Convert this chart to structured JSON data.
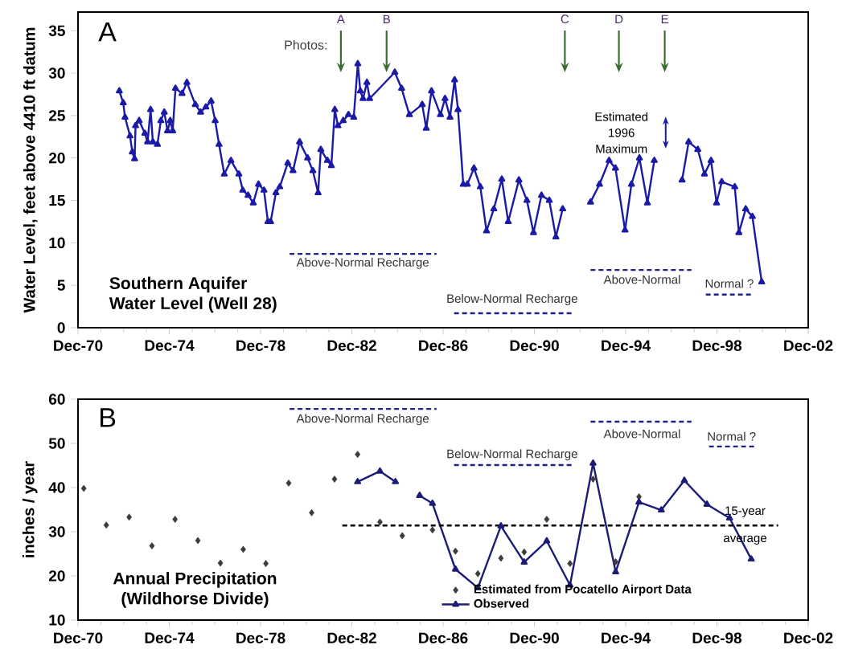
{
  "chart_data": [
    {
      "type": "line",
      "title": "Southern Aquifer",
      "subtitle": "Water Level (Well 28)",
      "ylabel": "Water Level, feet above 4410 ft datum",
      "xlim": [
        "1970-12",
        "2002-12"
      ],
      "ylim": [
        0,
        37.2
      ],
      "yticks": [
        0,
        5,
        10,
        15,
        20,
        25,
        30,
        35
      ],
      "xticks": [
        {
          "value": "1970-12",
          "label": "Dec-70"
        },
        {
          "value": "1974-12",
          "label": "Dec-74"
        },
        {
          "value": "1978-12",
          "label": "Dec-78"
        },
        {
          "value": "1982-12",
          "label": "Dec-82"
        },
        {
          "value": "1986-12",
          "label": "Dec-86"
        },
        {
          "value": "1990-12",
          "label": "Dec-90"
        },
        {
          "value": "1994-12",
          "label": "Dec-94"
        },
        {
          "value": "1998-12",
          "label": "Dec-98"
        },
        {
          "value": "2002-12",
          "label": "Dec-02"
        }
      ],
      "series": [
        {
          "color": "#1a1aa6",
          "marker": "triangle",
          "x": [
            "1972-09-23",
            "1972-11-25",
            "1972-12-23",
            "1973-03-12",
            "1973-04-18",
            "1973-05-24",
            "1973-06-09",
            "1973-08-06",
            "1973-11-06",
            "1973-12-19",
            "1974-02-06",
            "1974-03-12",
            "1974-05-24",
            "1974-07-18",
            "1974-09-12",
            "1974-11-03",
            "1974-12-16",
            "1975-01-25",
            "1975-03-09",
            "1975-06-23",
            "1975-09-09",
            "1976-01-22",
            "1976-04-15",
            "1976-07-08",
            "1976-10-01",
            "1976-12-05",
            "1977-02-06",
            "1977-04-29",
            "1977-08-14",
            "1977-12-19",
            "1978-02-21",
            "1978-05-14",
            "1978-08-06",
            "1978-10-29",
            "1979-01-25",
            "1979-03-27",
            "1979-05-10",
            "1979-08-03",
            "1979-10-04",
            "1980-02-10",
            "1980-05-03",
            "1980-08-17",
            "1980-12-23",
            "1981-03-16",
            "1981-06-09",
            "1981-07-22",
            "1981-11-06",
            "1982-01-08",
            "1982-03-02",
            "1982-04-22",
            "1982-07-15",
            "1982-10-08",
            "1983-01-01",
            "1983-03-05",
            "1983-04-15",
            "1983-05-28",
            "1983-07-29",
            "1983-09-12",
            "1984-10-19",
            "1985-02-06",
            "1985-06-09",
            "1986-01-01",
            "1986-03-05",
            "1986-05-28",
            "1986-10-19",
            "1987-01-01",
            "1987-03-20",
            "1987-06-02",
            "1987-07-26",
            "1987-10-19",
            "1987-12-23",
            "1988-04-08",
            "1988-07-18",
            "1988-10-26",
            "1989-02-21",
            "1989-06-27",
            "1989-10-08",
            "1990-03-27",
            "1990-08-03",
            "1990-11-17",
            "1991-03-23",
            "1991-07-26",
            "1991-11-10",
            "1992-02-28",
            "1992-10-19",
            "1993-05-17",
            "1993-10-08",
            "1994-03-09",
            "1994-06-20",
            "1994-11-21",
            "1995-03-02",
            "1995-07-08",
            "1995-11-14",
            "1996-03-02",
            "1996-10-19",
            "1997-05-21",
            "1997-09-05",
            "1998-01-29",
            "1998-05-14",
            "1998-08-28",
            "1998-11-25",
            "1999-02-17",
            "1999-09-12",
            "1999-11-17",
            "2000-03-05",
            "2000-06-20",
            "2000-11-17"
          ],
          "values": [
            27.9,
            26.5,
            24.8,
            22.6,
            20.7,
            19.9,
            23.8,
            24.4,
            22.9,
            21.9,
            25.7,
            21.9,
            21.6,
            24.4,
            25.4,
            23.2,
            24.4,
            23.2,
            28.2,
            27.6,
            28.9,
            26.3,
            25.4,
            26.0,
            26.7,
            24.4,
            21.6,
            18.1,
            19.7,
            18.1,
            16.2,
            15.6,
            14.7,
            16.9,
            16.2,
            12.5,
            12.5,
            15.9,
            16.6,
            19.4,
            18.5,
            21.9,
            20.0,
            18.5,
            15.9,
            21.0,
            19.7,
            19.1,
            25.7,
            23.8,
            24.4,
            25.1,
            24.8,
            31.1,
            27.9,
            27.0,
            28.9,
            27.0,
            30.1,
            28.2,
            25.1,
            26.3,
            23.5,
            27.9,
            25.1,
            27.0,
            24.8,
            29.2,
            25.7,
            16.9,
            16.9,
            18.8,
            16.6,
            11.4,
            14.0,
            17.5,
            12.5,
            17.4,
            15.0,
            11.2,
            15.6,
            15.0,
            10.7,
            14.0,
            null,
            14.8,
            16.9,
            19.7,
            18.8,
            11.5,
            16.9,
            20.0,
            14.7,
            19.7,
            null,
            17.4,
            21.9,
            21.0,
            18.1,
            19.7,
            14.7,
            17.2,
            16.6,
            11.2,
            14.0,
            13.1,
            5.4
          ]
        },
        {
          "color": "#20208c",
          "marker": "none",
          "line_style": "dashed",
          "x": [
            "1980-03-09",
            "1986-08-17"
          ],
          "values": [
            8.7,
            8.7
          ]
        },
        {
          "color": "#20208c",
          "marker": "none",
          "line_style": "dashed",
          "x": [
            "1987-05-24",
            "1992-08-14"
          ],
          "values": [
            1.7,
            1.7
          ]
        },
        {
          "color": "#20208c",
          "marker": "none",
          "line_style": "dashed",
          "x": [
            "1993-05-17",
            "1997-10-19"
          ],
          "values": [
            6.8,
            6.8
          ]
        },
        {
          "color": "#20208c",
          "marker": "none",
          "line_style": "dashed",
          "x": [
            "1998-06-05",
            "2000-06-16"
          ],
          "values": [
            3.9,
            3.9
          ]
        }
      ],
      "annotations": [
        "A",
        "Photos:",
        "A",
        "B",
        "C",
        "D",
        "E",
        "Estimated 1996 Maximum",
        "Above-Normal Recharge",
        "Below-Normal Recharge",
        "Above-Normal",
        "Normal ?"
      ]
    },
    {
      "type": "line",
      "title": "Annual Precipitation",
      "subtitle": "(Wildhorse Divide)",
      "ylabel": "inches / year",
      "legend": "bottom",
      "xlim": [
        "1970-12",
        "2002-12"
      ],
      "ylim": [
        10,
        60
      ],
      "yticks": [
        10,
        20,
        30,
        40,
        50,
        60
      ],
      "xticks": [
        {
          "value": "1970-12",
          "label": "Dec-70"
        },
        {
          "value": "1974-12",
          "label": "Dec-74"
        },
        {
          "value": "1978-12",
          "label": "Dec-78"
        },
        {
          "value": "1982-12",
          "label": "Dec-82"
        },
        {
          "value": "1986-12",
          "label": "Dec-86"
        },
        {
          "value": "1990-12",
          "label": "Dec-90"
        },
        {
          "value": "1994-12",
          "label": "Dec-94"
        },
        {
          "value": "1998-12",
          "label": "Dec-98"
        },
        {
          "value": "2002-12",
          "label": "Dec-02"
        }
      ],
      "series": [
        {
          "name": "Estimated from Pocatello Airport Data",
          "type": "scatter",
          "color": "#3c3c3c",
          "marker": "diamond",
          "x": [
            "1971-03-02",
            "1972-02-28",
            "1973-02-28",
            "1974-02-28",
            "1975-03-02",
            "1976-03-02",
            "1977-02-28",
            "1978-02-28",
            "1979-02-25",
            "1980-02-25",
            "1981-02-28",
            "1982-02-28",
            "1983-03-02",
            "1984-02-25",
            "1985-02-17",
            "1986-06-13",
            "1987-06-16",
            "1988-06-09",
            "1989-06-13",
            "1990-06-20",
            "1991-06-16",
            "1992-06-23",
            "1993-06-27",
            "1994-06-23",
            "1995-07-01"
          ],
          "values": [
            39.8,
            31.5,
            33.3,
            26.8,
            32.8,
            28.0,
            22.9,
            26.0,
            22.8,
            41.0,
            34.3,
            41.9,
            47.5,
            32.2,
            29.1,
            30.4,
            25.6,
            20.5,
            24.0,
            25.4,
            32.8,
            22.8,
            41.9,
            23.2,
            37.9
          ]
        },
        {
          "name": "Observed",
          "color": "#1c1c78",
          "marker": "triangle",
          "x": [
            "1983-03-02",
            "1984-02-25",
            "1984-10-29",
            "1985-05-24",
            "1985-11-21",
            "1986-06-13",
            "1987-06-16",
            "1988-06-09",
            "1989-06-13",
            "1990-06-20",
            "1991-06-16",
            "1992-06-23",
            "1993-06-27",
            "1994-06-23",
            "1995-07-01",
            "1996-06-23",
            "1997-06-27",
            "1998-06-23",
            "1999-06-20",
            "2000-06-02"
          ],
          "values": [
            41.3,
            43.7,
            41.3,
            null,
            38.2,
            36.4,
            21.5,
            17.3,
            31.3,
            23.1,
            27.9,
            17.9,
            45.5,
            20.9,
            36.7,
            34.9,
            41.6,
            36.2,
            33.1,
            23.8
          ]
        },
        {
          "name": "15-year average",
          "color": "#000000",
          "marker": "none",
          "line_style": "dashed",
          "x": [
            "1982-07-01",
            "2001-08-06"
          ],
          "values": [
            31.4,
            31.4
          ]
        },
        {
          "color": "#20208c",
          "marker": "none",
          "line_style": "dashed",
          "x": [
            "1980-03-09",
            "1986-08-17"
          ],
          "values": [
            57.8,
            57.8
          ]
        },
        {
          "color": "#20208c",
          "marker": "none",
          "line_style": "dashed",
          "x": [
            "1987-05-24",
            "1992-08-14"
          ],
          "values": [
            45.1,
            45.1
          ]
        },
        {
          "color": "#20208c",
          "marker": "none",
          "line_style": "dashed",
          "x": [
            "1993-05-17",
            "1997-10-19"
          ],
          "values": [
            54.9,
            54.9
          ]
        },
        {
          "color": "#20208c",
          "marker": "none",
          "line_style": "dashed",
          "x": [
            "1998-07-26",
            "2000-08-25"
          ],
          "values": [
            49.3,
            49.3
          ]
        }
      ],
      "annotations": [
        "B",
        "Above-Normal Recharge",
        "Below-Normal Recharge",
        "Above-Normal",
        "Normal ?"
      ]
    }
  ]
}
